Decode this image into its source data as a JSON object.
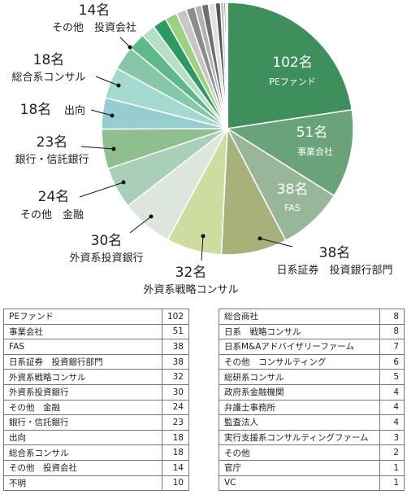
{
  "chart_data": {
    "type": "pie",
    "unit": "名",
    "slices": [
      {
        "label": "PEファンド",
        "value": 102,
        "color": "#3f8f5c"
      },
      {
        "label": "事業会社",
        "value": 51,
        "color": "#6aa27a"
      },
      {
        "label": "FAS",
        "value": 38,
        "color": "#98b79a"
      },
      {
        "label": "日系証券　投資銀行部門",
        "value": 38,
        "color": "#a7b27a"
      },
      {
        "label": "外資系戦略コンサル",
        "value": 32,
        "color": "#cfdca0"
      },
      {
        "label": "外資系投資銀行",
        "value": 30,
        "color": "#dde6dc"
      },
      {
        "label": "その他　金融",
        "value": 24,
        "color": "#a9cfb8"
      },
      {
        "label": "銀行・信託銀行",
        "value": 23,
        "color": "#8fbf8f"
      },
      {
        "label": "出向",
        "value": 18,
        "color": "#95cdd0"
      },
      {
        "label": "総合系コンサル",
        "value": 18,
        "color": "#a3d9cf"
      },
      {
        "label": "その他　投資会社",
        "value": 14,
        "color": "#86c7a8"
      },
      {
        "label": "不明",
        "value": 10,
        "color": "#5fb88a"
      },
      {
        "label": "総合商社",
        "value": 8,
        "color": "#b6dfc6"
      },
      {
        "label": "日系　戦略コンサル",
        "value": 8,
        "color": "#2e9a63"
      },
      {
        "label": "日系M&Aアドバイザリーファーム",
        "value": 7,
        "color": "#9ed17f"
      },
      {
        "label": "その他　コンサルティング",
        "value": 6,
        "color": "#c7c7c7"
      },
      {
        "label": "総研系コンサル",
        "value": 5,
        "color": "#8c8c8c"
      },
      {
        "label": "政府系金融機関",
        "value": 4,
        "color": "#b3b3b3"
      },
      {
        "label": "弁護士事務所",
        "value": 4,
        "color": "#6f6f6f"
      },
      {
        "label": "監査法人",
        "value": 4,
        "color": "#e0e0e0"
      },
      {
        "label": "実行支援系コンサルティングファーム",
        "value": 3,
        "color": "#555555"
      },
      {
        "label": "その他",
        "value": 2,
        "color": "#bfbfbf"
      },
      {
        "label": "官庁",
        "value": 1,
        "color": "#333333"
      },
      {
        "label": "VC",
        "value": 1,
        "color": "#e8e8e8"
      }
    ],
    "callouts": [
      {
        "num": "102名",
        "name": "PEファンド"
      },
      {
        "num": "51名",
        "name": "事業会社"
      },
      {
        "num": "38名",
        "name": "FAS"
      },
      {
        "num": "38名",
        "name": "日系証券　投資銀行部門"
      },
      {
        "num": "32名",
        "name": "外資系戦略コンサル"
      },
      {
        "num": "30名",
        "name": "外資系投資銀行"
      },
      {
        "num": "24名",
        "name": "その他　金融"
      },
      {
        "num": "23名",
        "name": "銀行・信託銀行"
      },
      {
        "num": "18名",
        "name": "出向"
      },
      {
        "num": "18名",
        "name": "総合系コンサル"
      },
      {
        "num": "14名",
        "name": "その他　投資会社"
      }
    ]
  },
  "table_left": [
    {
      "label": "PEファンド",
      "value": "102"
    },
    {
      "label": "事業会社",
      "value": "51"
    },
    {
      "label": "FAS",
      "value": "38"
    },
    {
      "label": "日系証券　投資銀行部門",
      "value": "38"
    },
    {
      "label": "外資系戦略コンサル",
      "value": "32"
    },
    {
      "label": "外資系投資銀行",
      "value": "30"
    },
    {
      "label": "その他　金融",
      "value": "24"
    },
    {
      "label": "銀行・信託銀行",
      "value": "23"
    },
    {
      "label": "出向",
      "value": "18"
    },
    {
      "label": "総合系コンサル",
      "value": "18"
    },
    {
      "label": "その他　投資会社",
      "value": "14"
    },
    {
      "label": "不明",
      "value": "10"
    }
  ],
  "table_right": [
    {
      "label": "総合商社",
      "value": "8"
    },
    {
      "label": "日系　戦略コンサル",
      "value": "8"
    },
    {
      "label": "日系M&Aアドバイザリーファーム",
      "value": "7"
    },
    {
      "label": "その他　コンサルティング",
      "value": "6"
    },
    {
      "label": "総研系コンサル",
      "value": "5"
    },
    {
      "label": "政府系金融機関",
      "value": "4"
    },
    {
      "label": "弁護士事務所",
      "value": "4"
    },
    {
      "label": "監査法人",
      "value": "4"
    },
    {
      "label": "実行支援系コンサルティングファーム",
      "value": "3"
    },
    {
      "label": "その他",
      "value": "2"
    },
    {
      "label": "官庁",
      "value": "1"
    },
    {
      "label": "VC",
      "value": "1"
    }
  ]
}
